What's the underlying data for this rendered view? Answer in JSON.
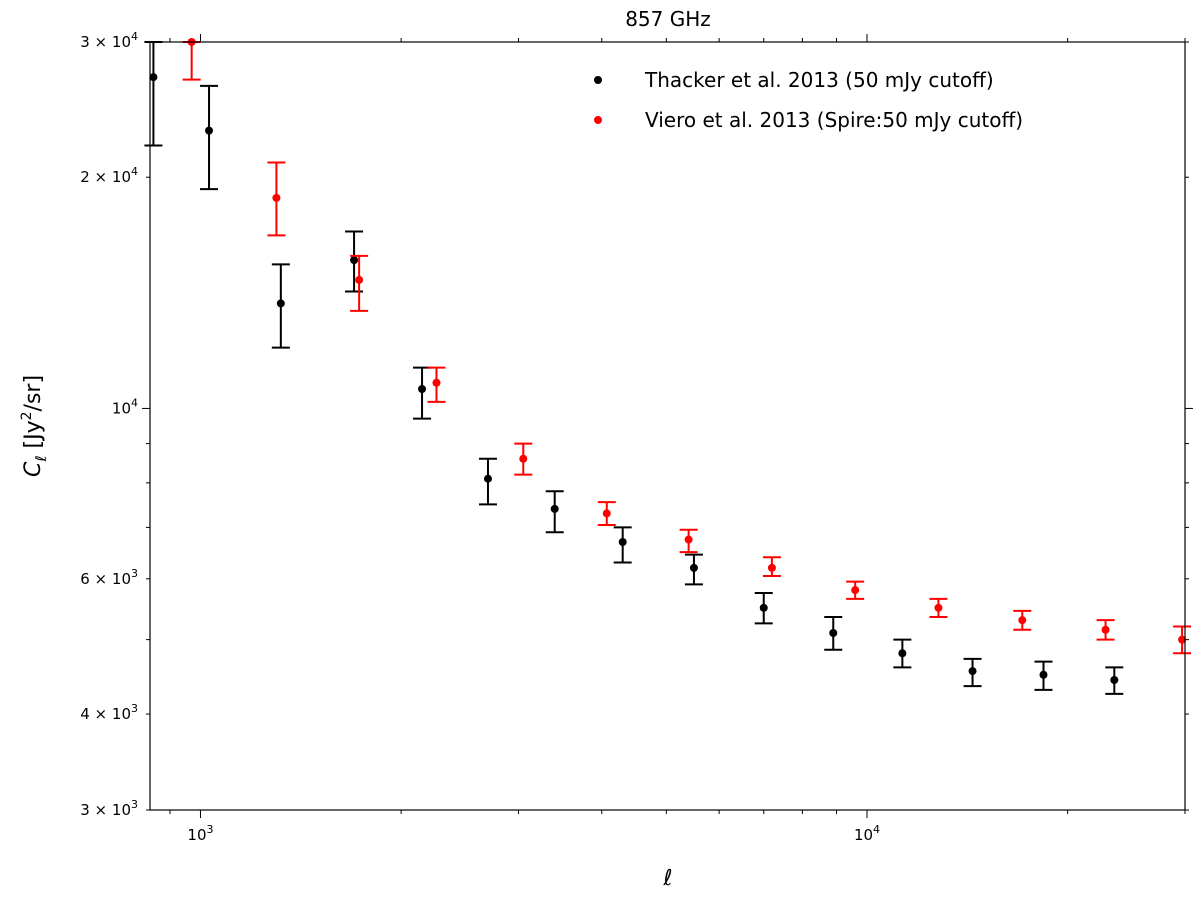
{
  "chart_data": {
    "type": "scatter",
    "title": "857 GHz",
    "xlabel": "ℓ",
    "ylabel": "C_ℓ [Jy²/sr]",
    "xscale": "log",
    "yscale": "log",
    "xlim": [
      840,
      30000
    ],
    "ylim": [
      3000,
      30000
    ],
    "x_major_ticks": [
      {
        "value": 1000,
        "mant": "10",
        "exp": "3"
      },
      {
        "value": 10000,
        "mant": "10",
        "exp": "4"
      }
    ],
    "y_ticks": [
      {
        "value": 3000,
        "mant": "3 × 10",
        "exp": "3"
      },
      {
        "value": 4000,
        "mant": "4 × 10",
        "exp": "3"
      },
      {
        "value": 6000,
        "mant": "6 × 10",
        "exp": "3"
      },
      {
        "value": 10000,
        "mant": "10",
        "exp": "4"
      },
      {
        "value": 20000,
        "mant": "2 × 10",
        "exp": "4"
      },
      {
        "value": 30000,
        "mant": "3 × 10",
        "exp": "4"
      }
    ],
    "y_minor_unlabeled": [
      5000,
      7000,
      8000,
      9000
    ],
    "grid": false,
    "legend_position": "top-right",
    "series": [
      {
        "name": "Thacker et al. 2013 (50 mJy cutoff)",
        "color": "#000000",
        "points": [
          {
            "x": 850,
            "y": 27000,
            "lo": 22000,
            "hi": 30000
          },
          {
            "x": 1030,
            "y": 23000,
            "lo": 19300,
            "hi": 26300
          },
          {
            "x": 1320,
            "y": 13700,
            "lo": 12000,
            "hi": 15400
          },
          {
            "x": 1700,
            "y": 15600,
            "lo": 14200,
            "hi": 17000
          },
          {
            "x": 2150,
            "y": 10600,
            "lo": 9700,
            "hi": 11300
          },
          {
            "x": 2700,
            "y": 8100,
            "lo": 7500,
            "hi": 8600
          },
          {
            "x": 3400,
            "y": 7400,
            "lo": 6900,
            "hi": 7800
          },
          {
            "x": 4300,
            "y": 6700,
            "lo": 6300,
            "hi": 7000
          },
          {
            "x": 5500,
            "y": 6200,
            "lo": 5900,
            "hi": 6450
          },
          {
            "x": 7000,
            "y": 5500,
            "lo": 5250,
            "hi": 5750
          },
          {
            "x": 8900,
            "y": 5100,
            "lo": 4850,
            "hi": 5350
          },
          {
            "x": 11300,
            "y": 4800,
            "lo": 4600,
            "hi": 5000
          },
          {
            "x": 14400,
            "y": 4550,
            "lo": 4350,
            "hi": 4720
          },
          {
            "x": 18400,
            "y": 4500,
            "lo": 4300,
            "hi": 4680
          },
          {
            "x": 23500,
            "y": 4430,
            "lo": 4250,
            "hi": 4600
          }
        ]
      },
      {
        "name": "Viero et al. 2013 (Spire:50 mJy cutoff)",
        "color": "#ff0000",
        "points": [
          {
            "x": 970,
            "y": 30000,
            "lo": 26800,
            "hi": 30000
          },
          {
            "x": 1300,
            "y": 18800,
            "lo": 16800,
            "hi": 20900
          },
          {
            "x": 1730,
            "y": 14700,
            "lo": 13400,
            "hi": 15800
          },
          {
            "x": 2260,
            "y": 10800,
            "lo": 10200,
            "hi": 11300
          },
          {
            "x": 3050,
            "y": 8600,
            "lo": 8200,
            "hi": 9000
          },
          {
            "x": 4070,
            "y": 7300,
            "lo": 7050,
            "hi": 7550
          },
          {
            "x": 5400,
            "y": 6750,
            "lo": 6500,
            "hi": 6950
          },
          {
            "x": 7200,
            "y": 6200,
            "lo": 6050,
            "hi": 6400
          },
          {
            "x": 9600,
            "y": 5800,
            "lo": 5650,
            "hi": 5950
          },
          {
            "x": 12800,
            "y": 5500,
            "lo": 5350,
            "hi": 5650
          },
          {
            "x": 17100,
            "y": 5300,
            "lo": 5150,
            "hi": 5450
          },
          {
            "x": 22800,
            "y": 5150,
            "lo": 5000,
            "hi": 5300
          },
          {
            "x": 29700,
            "y": 5000,
            "lo": 4800,
            "hi": 5200
          }
        ]
      }
    ]
  }
}
